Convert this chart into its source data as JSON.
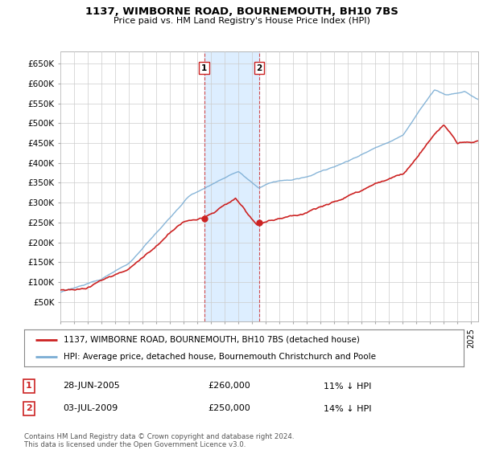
{
  "title": "1137, WIMBORNE ROAD, BOURNEMOUTH, BH10 7BS",
  "subtitle": "Price paid vs. HM Land Registry's House Price Index (HPI)",
  "ylim": [
    0,
    680000
  ],
  "yticks": [
    50000,
    100000,
    150000,
    200000,
    250000,
    300000,
    350000,
    400000,
    450000,
    500000,
    550000,
    600000,
    650000
  ],
  "ytick_labels": [
    "£50K",
    "£100K",
    "£150K",
    "£200K",
    "£250K",
    "£300K",
    "£350K",
    "£400K",
    "£450K",
    "£500K",
    "£550K",
    "£600K",
    "£650K"
  ],
  "hpi_color": "#7aadd4",
  "price_color": "#cc2222",
  "sale1_date": 2005.49,
  "sale1_price": 260000,
  "sale2_date": 2009.51,
  "sale2_price": 250000,
  "legend_price_label": "1137, WIMBORNE ROAD, BOURNEMOUTH, BH10 7BS (detached house)",
  "legend_hpi_label": "HPI: Average price, detached house, Bournemouth Christchurch and Poole",
  "annotation1_date": "28-JUN-2005",
  "annotation1_price": "£260,000",
  "annotation1_pct": "11% ↓ HPI",
  "annotation2_date": "03-JUL-2009",
  "annotation2_price": "£250,000",
  "annotation2_pct": "14% ↓ HPI",
  "footer": "Contains HM Land Registry data © Crown copyright and database right 2024.\nThis data is licensed under the Open Government Licence v3.0.",
  "background_color": "#ffffff",
  "grid_color": "#cccccc",
  "shade_color": "#ddeeff"
}
